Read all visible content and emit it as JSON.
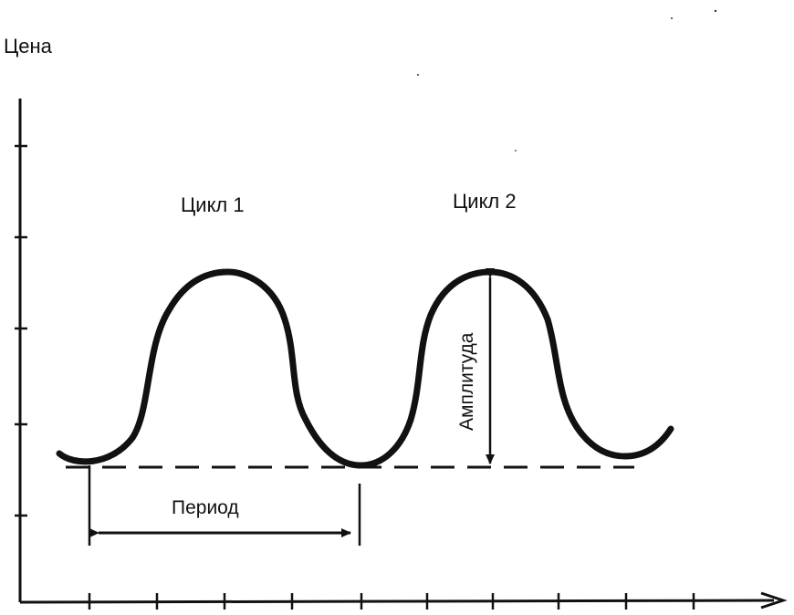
{
  "diagram": {
    "y_axis_label": "Цена",
    "cycles": [
      {
        "label": "Цикл 1"
      },
      {
        "label": "Цикл 2"
      }
    ],
    "period_label": "Период",
    "amplitude_label": "Амплитуда",
    "colors": {
      "ink": "#111111",
      "background": "#ffffff"
    }
  }
}
